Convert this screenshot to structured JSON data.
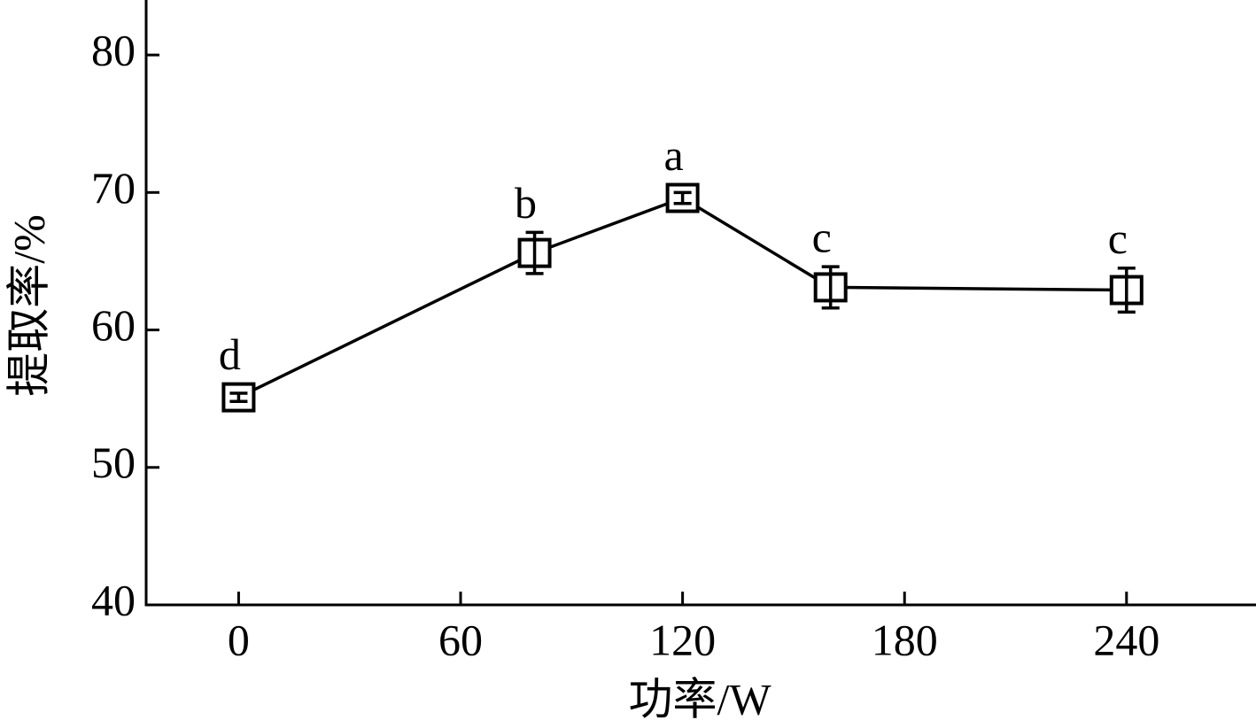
{
  "chart_data": {
    "type": "line",
    "x_label": "功率/W",
    "y_label": "提取率/%",
    "x": [
      0,
      80,
      120,
      160,
      240
    ],
    "values": [
      55.1,
      65.6,
      69.6,
      63.1,
      62.9
    ],
    "errors": [
      0.3,
      1.5,
      0.4,
      1.5,
      1.6
    ],
    "significance": [
      "d",
      "b",
      "a",
      "c",
      "c"
    ],
    "color": "#000000",
    "xlim": [
      -25,
      275
    ],
    "xticks": [
      0,
      60,
      120,
      180,
      240
    ],
    "ylim": [
      40,
      84
    ],
    "yticks": [
      40,
      50,
      60,
      70,
      80
    ]
  }
}
